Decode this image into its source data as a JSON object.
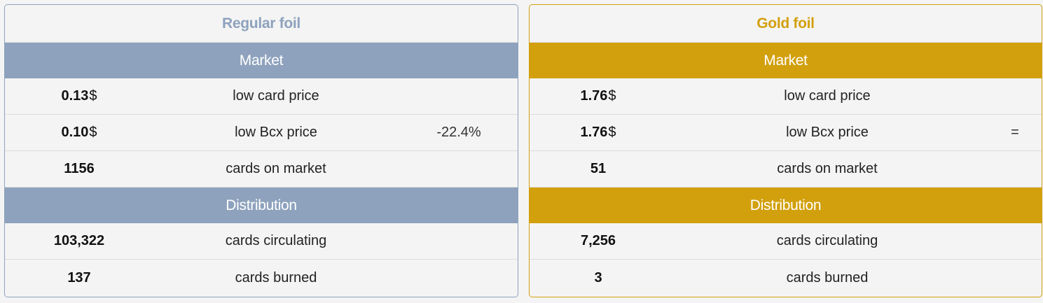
{
  "regular": {
    "title": "Regular foil",
    "market_header": "Market",
    "distribution_header": "Distribution",
    "low_card_price": {
      "value": "0.13",
      "unit": "$",
      "label": "low card price"
    },
    "low_bcx_price": {
      "value": "0.10",
      "unit": "$",
      "label": "low Bcx price",
      "change": "-22.4%"
    },
    "cards_on_market": {
      "value": "1156",
      "label": "cards on market"
    },
    "cards_circulating": {
      "value": "103,322",
      "label": "cards circulating"
    },
    "cards_burned": {
      "value": "137",
      "label": "cards burned"
    }
  },
  "gold": {
    "title": "Gold foil",
    "market_header": "Market",
    "distribution_header": "Distribution",
    "low_card_price": {
      "value": "1.76",
      "unit": "$",
      "label": "low card price"
    },
    "low_bcx_price": {
      "value": "1.76",
      "unit": "$",
      "label": "low Bcx price",
      "change": "="
    },
    "cards_on_market": {
      "value": "51",
      "label": "cards on market"
    },
    "cards_circulating": {
      "value": "7,256",
      "label": "cards circulating"
    },
    "cards_burned": {
      "value": "3",
      "label": "cards burned"
    }
  },
  "colors": {
    "regular_accent": "#8ea2bd",
    "gold_accent": "#d2a00d",
    "background": "#f4f4f4"
  }
}
